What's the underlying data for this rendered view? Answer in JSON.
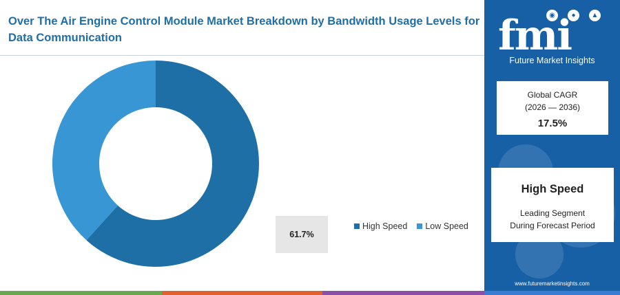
{
  "title": "Over The Air Engine Control Module Market Breakdown by Bandwidth Usage Levels for Data Communication",
  "chart_data": {
    "type": "pie",
    "donut": true,
    "title": "Over The Air Engine Control Module Market Breakdown by Bandwidth Usage Levels for Data Communication",
    "categories": [
      "High Speed",
      "Low Speed"
    ],
    "values": [
      61.7,
      38.3
    ],
    "colors": [
      "#1f6fa7",
      "#3796d3"
    ],
    "data_labels": [
      "61.7%"
    ],
    "legend": "right"
  },
  "sidebar": {
    "logo_text": "fmi",
    "logo_subtitle": "Future Market Insights",
    "cagr_label_line1": "Global CAGR",
    "cagr_label_line2": "(2026 — 2036)",
    "cagr_value": "17.5%",
    "segment_title": "High Speed",
    "segment_sub_line1": "Leading Segment",
    "segment_sub_line2": "During Forecast Period",
    "website": "www.futuremarketinsights.com"
  },
  "colors": {
    "sidebar": "#1760a6",
    "title": "#1f6ea8",
    "bottom_bar": [
      "#6aa84f",
      "#e06030",
      "#8a4fa8",
      "#3a7bd5"
    ]
  }
}
